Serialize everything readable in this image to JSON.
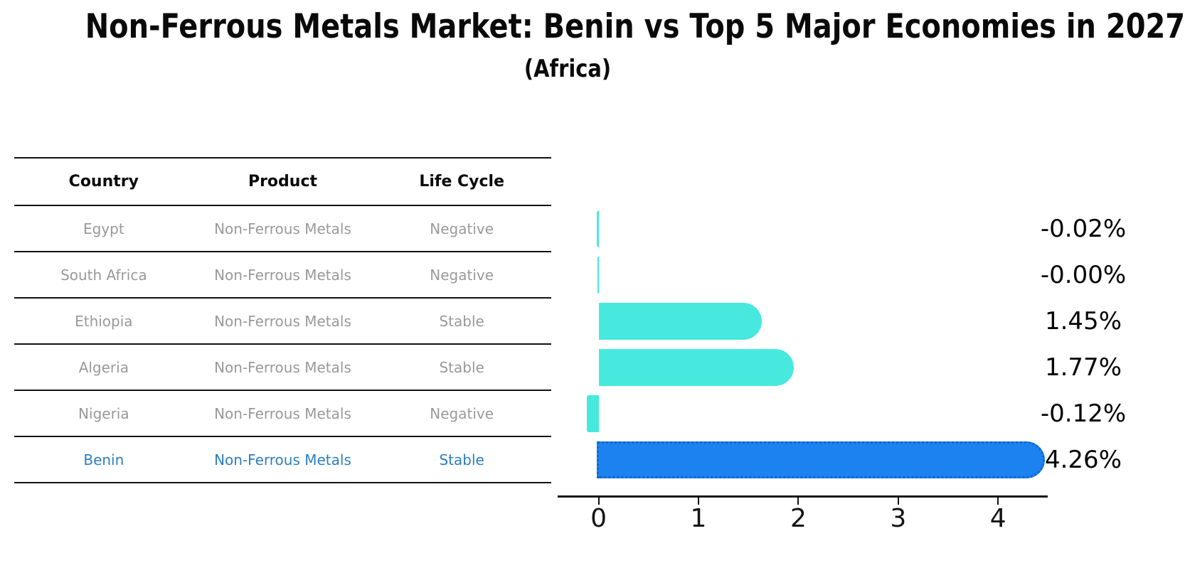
{
  "title": "Non-Ferrous Metals Market: Benin vs Top 5 Major Economies in 2027",
  "subtitle": "(Africa)",
  "table": {
    "headers": [
      "Country",
      "Product",
      "Life Cycle"
    ],
    "rows": [
      {
        "country": "Egypt",
        "product": "Non-Ferrous Metals",
        "life_cycle": "Negative",
        "highlight": false
      },
      {
        "country": "South Africa",
        "product": "Non-Ferrous Metals",
        "life_cycle": "Negative",
        "highlight": false
      },
      {
        "country": "Ethiopia",
        "product": "Non-Ferrous Metals",
        "life_cycle": "Stable",
        "highlight": false
      },
      {
        "country": "Algeria",
        "product": "Non-Ferrous Metals",
        "life_cycle": "Stable",
        "highlight": false
      },
      {
        "country": "Nigeria",
        "product": "Non-Ferrous Metals",
        "life_cycle": "Negative",
        "highlight": false
      },
      {
        "country": "Benin",
        "product": "Non-Ferrous Metals",
        "life_cycle": "Stable",
        "highlight": true
      }
    ]
  },
  "chart_data": {
    "type": "bar",
    "orientation": "horizontal",
    "categories": [
      "Egypt",
      "South Africa",
      "Ethiopia",
      "Algeria",
      "Nigeria",
      "Benin"
    ],
    "values": [
      -0.02,
      -0.0,
      1.45,
      1.77,
      -0.12,
      4.26
    ],
    "value_labels": [
      "-0.02%",
      "-0.00%",
      "1.45%",
      "1.77%",
      "-0.12%",
      "4.26%"
    ],
    "x_ticks": [
      0,
      1,
      2,
      3,
      4
    ],
    "x_tick_labels": [
      "0",
      "1",
      "2",
      "3",
      "4"
    ],
    "xlim": [
      -0.41,
      4.5
    ],
    "grid": false,
    "legend": "none",
    "highlight_index": 5,
    "colors": {
      "bar": "#47e9df",
      "highlight_bar": "#1b82f0",
      "highlight_border": "#1465cc",
      "highlight_text": "#2e7ebd",
      "row_text": "#999999",
      "axis": "#111111"
    }
  }
}
